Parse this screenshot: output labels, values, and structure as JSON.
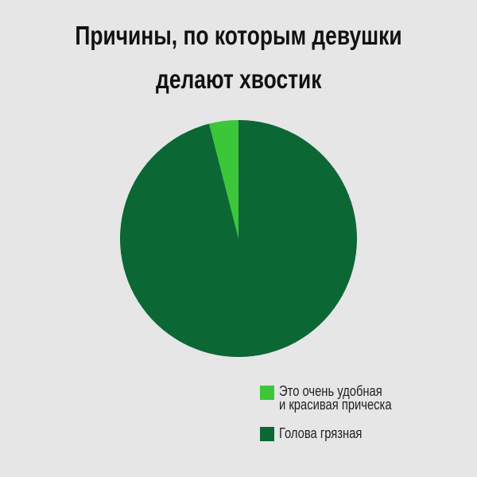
{
  "chart_data": {
    "type": "pie",
    "title": [
      "Причины, по которым девушки",
      "делают хвостик"
    ],
    "slices": [
      {
        "label": "Это очень удобная и красивая прическа",
        "label_lines": [
          "Это очень удобная",
          "и красивая прическа"
        ],
        "value": 4,
        "color": "#3cc63a"
      },
      {
        "label": "Голова грязная",
        "value": 96,
        "color": "#0b6734"
      }
    ],
    "legend_position": "bottom-right",
    "start": "top, counter-clockwise for first slice"
  }
}
